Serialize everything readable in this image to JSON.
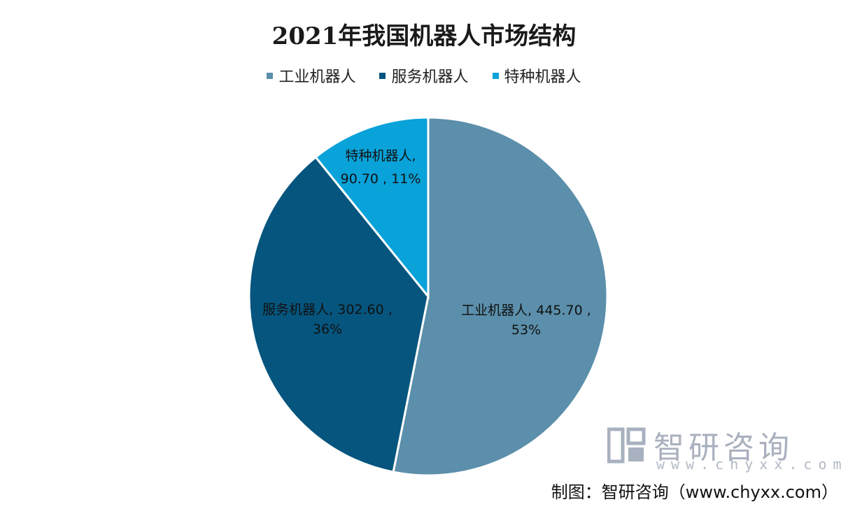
{
  "chart_data": {
    "type": "pie",
    "title": "2021年我国机器人市场结构",
    "legend_position": "top",
    "series": [
      {
        "name": "工业机器人",
        "value": 445.7,
        "percent": 53,
        "color": "#5b8fab",
        "label_line1": "工业机器人, 445.70 ,",
        "label_line2": "53%"
      },
      {
        "name": "服务机器人",
        "value": 302.6,
        "percent": 36,
        "color": "#05557e",
        "label_line1": "服务机器人, 302.60 ,",
        "label_line2": "36%"
      },
      {
        "name": "特种机器人",
        "value": 90.7,
        "percent": 11,
        "color": "#09a2d9",
        "label_line1": "特种机器人,",
        "label_line2": "90.70 , 11%"
      }
    ]
  },
  "watermark": {
    "name": "智研咨询",
    "url": "www.chyxx.com",
    "logo_icon": "chyxx-logo-icon"
  },
  "source_note": "制图：智研咨询（www.chyxx.com）"
}
